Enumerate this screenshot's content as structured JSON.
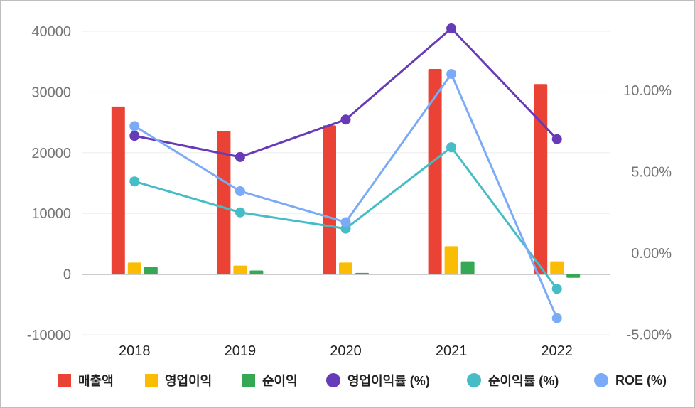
{
  "chart_data": {
    "type": "bar",
    "categories": [
      "2018",
      "2019",
      "2020",
      "2021",
      "2022"
    ],
    "y_left": {
      "ticks": [
        "40000",
        "30000",
        "20000",
        "10000",
        "0",
        "-10000"
      ],
      "range": [
        -10000,
        40000
      ]
    },
    "y_right": {
      "ticks": [
        "10.00%",
        "5.00%",
        "0.00%",
        "-5.00%"
      ],
      "range": [
        -5,
        10
      ]
    },
    "grid": true,
    "legend_position": "bottom",
    "series": [
      {
        "name": "매출액",
        "type": "bar",
        "axis": "left",
        "color": "#ea4335",
        "values": [
          27600,
          23600,
          24500,
          33800,
          31300
        ]
      },
      {
        "name": "영업이익",
        "type": "bar",
        "axis": "left",
        "color": "#fbbc04",
        "values": [
          1900,
          1400,
          1900,
          4600,
          2100
        ]
      },
      {
        "name": "순이익",
        "type": "bar",
        "axis": "left",
        "color": "#34a853",
        "values": [
          1200,
          600,
          200,
          2100,
          -600
        ]
      },
      {
        "name": "영업이익률 (%)",
        "type": "line",
        "axis": "right",
        "color": "#673ab7",
        "values": [
          7.2,
          5.9,
          8.2,
          13.8,
          7.0
        ]
      },
      {
        "name": "순이익률 (%)",
        "type": "line",
        "axis": "right",
        "color": "#46bdc6",
        "values": [
          4.4,
          2.5,
          1.5,
          6.5,
          -2.2
        ]
      },
      {
        "name": "ROE (%)",
        "type": "line",
        "axis": "right",
        "color": "#7baaf7",
        "values": [
          7.8,
          3.8,
          1.9,
          11.0,
          -4.0
        ]
      }
    ]
  }
}
